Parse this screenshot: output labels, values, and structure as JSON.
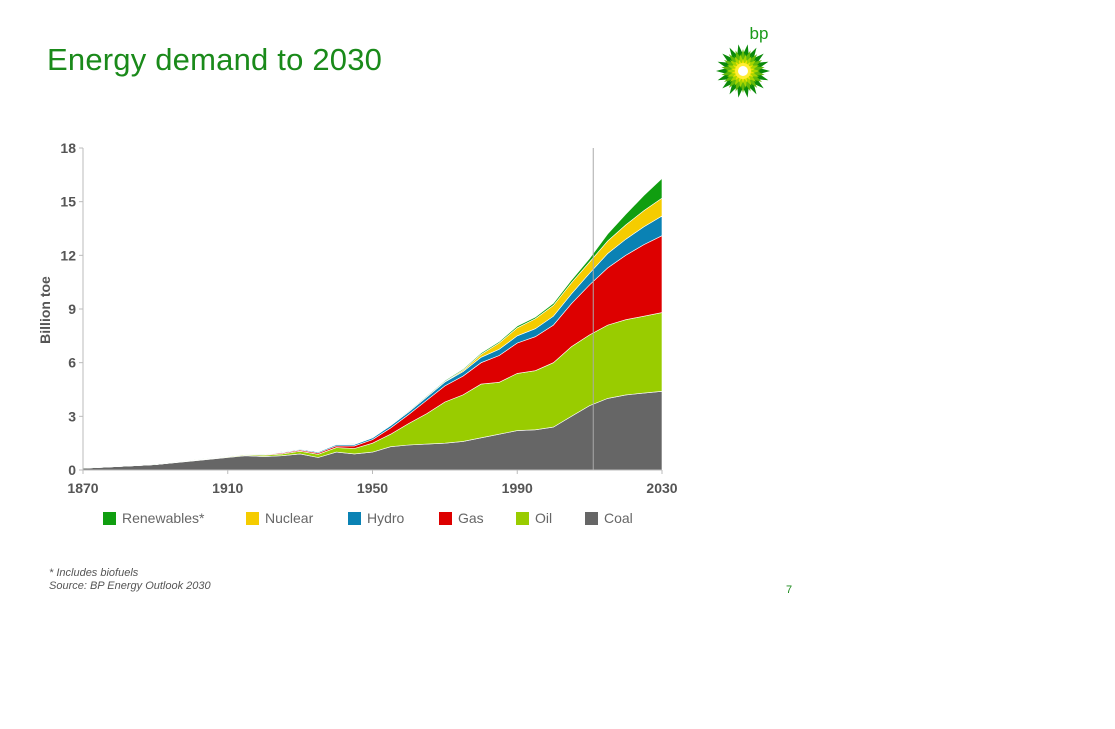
{
  "slide": {
    "title": "Energy demand to 2030",
    "logo_text": "bp",
    "footnote": "*   Includes biofuels",
    "source": "Source:  BP Energy Outlook 2030",
    "page_number": "7"
  },
  "colors": {
    "title": "#1a8a1a",
    "Coal": "#666666",
    "Oil": "#99cc00",
    "Gas": "#dd0000",
    "Hydro": "#0a82b4",
    "Nuclear": "#f5cc00",
    "Renewables*": "#109e10"
  },
  "chart_data": {
    "type": "area",
    "stacked": true,
    "title": "",
    "xlabel": "",
    "ylabel": "Billion toe",
    "xlim": [
      1870,
      2030
    ],
    "ylim": [
      0,
      18
    ],
    "xticks": [
      "1870",
      "1910",
      "1950",
      "1990",
      "2030"
    ],
    "yticks": [
      "0",
      "3",
      "6",
      "9",
      "12",
      "15",
      "18"
    ],
    "grid": false,
    "legend_position": "bottom",
    "x": [
      1870,
      1880,
      1890,
      1900,
      1910,
      1915,
      1920,
      1925,
      1930,
      1935,
      1940,
      1945,
      1950,
      1955,
      1960,
      1965,
      1970,
      1975,
      1980,
      1985,
      1990,
      1995,
      2000,
      2005,
      2010,
      2015,
      2020,
      2025,
      2030
    ],
    "series": [
      {
        "name": "Coal",
        "values": [
          0.1,
          0.2,
          0.3,
          0.5,
          0.7,
          0.8,
          0.75,
          0.8,
          0.9,
          0.7,
          1.0,
          0.9,
          1.0,
          1.3,
          1.4,
          1.45,
          1.5,
          1.6,
          1.8,
          2.0,
          2.2,
          2.25,
          2.4,
          3.0,
          3.6,
          4.0,
          4.2,
          4.3,
          4.4
        ]
      },
      {
        "name": "Oil",
        "values": [
          0.0,
          0.0,
          0.0,
          0.02,
          0.04,
          0.05,
          0.08,
          0.1,
          0.15,
          0.18,
          0.25,
          0.3,
          0.5,
          0.7,
          1.2,
          1.7,
          2.3,
          2.6,
          3.0,
          2.9,
          3.2,
          3.3,
          3.6,
          3.9,
          3.95,
          4.1,
          4.2,
          4.3,
          4.4
        ]
      },
      {
        "name": "Gas",
        "values": [
          0.0,
          0.0,
          0.0,
          0.0,
          0.01,
          0.02,
          0.03,
          0.05,
          0.06,
          0.07,
          0.1,
          0.15,
          0.2,
          0.35,
          0.5,
          0.75,
          0.9,
          1.05,
          1.2,
          1.5,
          1.7,
          1.9,
          2.1,
          2.4,
          2.8,
          3.2,
          3.6,
          4.0,
          4.3
        ]
      },
      {
        "name": "Hydro",
        "values": [
          0.0,
          0.0,
          0.0,
          0.0,
          0.01,
          0.02,
          0.03,
          0.04,
          0.05,
          0.06,
          0.07,
          0.08,
          0.1,
          0.13,
          0.15,
          0.18,
          0.22,
          0.25,
          0.3,
          0.35,
          0.4,
          0.45,
          0.5,
          0.55,
          0.65,
          0.8,
          0.9,
          1.0,
          1.1
        ]
      },
      {
        "name": "Nuclear",
        "values": [
          0,
          0,
          0,
          0,
          0,
          0,
          0,
          0,
          0,
          0,
          0,
          0,
          0,
          0,
          0,
          0.01,
          0.02,
          0.08,
          0.16,
          0.35,
          0.45,
          0.55,
          0.6,
          0.62,
          0.63,
          0.7,
          0.8,
          0.9,
          1.0
        ]
      },
      {
        "name": "Renewables*",
        "values": [
          0.02,
          0.02,
          0.02,
          0.02,
          0.02,
          0.02,
          0.02,
          0.03,
          0.03,
          0.03,
          0.03,
          0.03,
          0.04,
          0.04,
          0.05,
          0.05,
          0.06,
          0.06,
          0.08,
          0.08,
          0.1,
          0.1,
          0.12,
          0.15,
          0.2,
          0.4,
          0.6,
          0.85,
          1.1
        ]
      }
    ],
    "legend_order": [
      "Renewables*",
      "Nuclear",
      "Hydro",
      "Gas",
      "Oil",
      "Coal"
    ],
    "marker_line_x": 2011
  }
}
